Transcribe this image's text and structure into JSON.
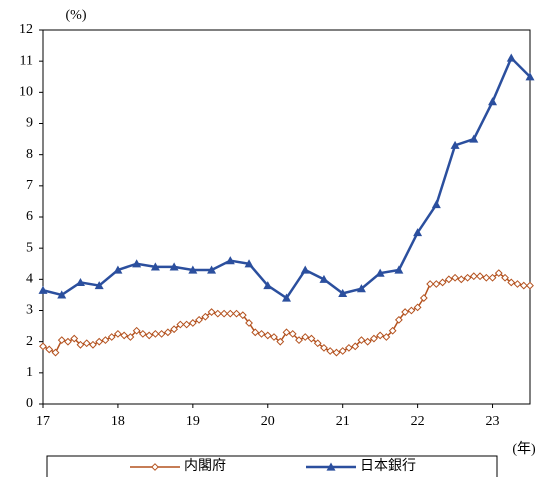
{
  "chart_data": {
    "type": "line",
    "y_unit_label": "(%)",
    "x_unit_label": "(年)",
    "xlim": [
      17,
      23.5
    ],
    "xticks": [
      17,
      18,
      19,
      20,
      21,
      22,
      23
    ],
    "ylim": [
      0,
      12
    ],
    "yticks": [
      0,
      1,
      2,
      3,
      4,
      5,
      6,
      7,
      8,
      9,
      10,
      11,
      12
    ],
    "legend": "bottom",
    "series": [
      {
        "name": "内閣府",
        "color": "#b4521f",
        "marker": "diamond",
        "x": [
          17,
          17.083,
          17.167,
          17.25,
          17.333,
          17.417,
          17.5,
          17.583,
          17.667,
          17.75,
          17.833,
          17.917,
          18,
          18.083,
          18.167,
          18.25,
          18.333,
          18.417,
          18.5,
          18.583,
          18.667,
          18.75,
          18.833,
          18.917,
          19,
          19.083,
          19.167,
          19.25,
          19.333,
          19.417,
          19.5,
          19.583,
          19.667,
          19.75,
          19.833,
          19.917,
          20,
          20.083,
          20.167,
          20.25,
          20.333,
          20.417,
          20.5,
          20.583,
          20.667,
          20.75,
          20.833,
          20.917,
          21,
          21.083,
          21.167,
          21.25,
          21.333,
          21.417,
          21.5,
          21.583,
          21.667,
          21.75,
          21.833,
          21.917,
          22,
          22.083,
          22.167,
          22.25,
          22.333,
          22.417,
          22.5,
          22.583,
          22.667,
          22.75,
          22.833,
          22.917,
          23,
          23.083,
          23.167,
          23.25,
          23.333,
          23.417,
          23.5
        ],
        "values": [
          1.85,
          1.75,
          1.65,
          2.05,
          2.0,
          2.1,
          1.9,
          1.95,
          1.9,
          2.0,
          2.05,
          2.15,
          2.25,
          2.2,
          2.15,
          2.35,
          2.25,
          2.2,
          2.25,
          2.25,
          2.3,
          2.4,
          2.55,
          2.55,
          2.6,
          2.7,
          2.8,
          2.95,
          2.9,
          2.9,
          2.9,
          2.9,
          2.85,
          2.6,
          2.3,
          2.25,
          2.2,
          2.15,
          2.0,
          2.3,
          2.25,
          2.05,
          2.15,
          2.1,
          1.95,
          1.8,
          1.7,
          1.65,
          1.7,
          1.8,
          1.85,
          2.05,
          2.0,
          2.1,
          2.2,
          2.15,
          2.35,
          2.7,
          2.95,
          3.0,
          3.1,
          3.4,
          3.85,
          3.85,
          3.9,
          4.0,
          4.05,
          4.0,
          4.05,
          4.1,
          4.1,
          4.05,
          4.05,
          4.2,
          4.05,
          3.9,
          3.85,
          3.8,
          3.8
        ]
      },
      {
        "name": "日本銀行",
        "color": "#2b4f9e",
        "marker": "triangle",
        "x": [
          17,
          17.25,
          17.5,
          17.75,
          18,
          18.25,
          18.5,
          18.75,
          19,
          19.25,
          19.5,
          19.75,
          20,
          20.25,
          20.5,
          20.75,
          21,
          21.25,
          21.5,
          21.75,
          22,
          22.25,
          22.5,
          22.75,
          23,
          23.25,
          23.5
        ],
        "values": [
          3.65,
          3.5,
          3.9,
          3.8,
          4.3,
          4.5,
          4.4,
          4.4,
          4.3,
          4.3,
          4.6,
          4.5,
          3.8,
          3.4,
          4.3,
          4.0,
          3.55,
          3.7,
          4.2,
          4.3,
          5.5,
          6.4,
          8.3,
          8.5,
          9.7,
          11.1,
          10.5
        ]
      }
    ]
  }
}
